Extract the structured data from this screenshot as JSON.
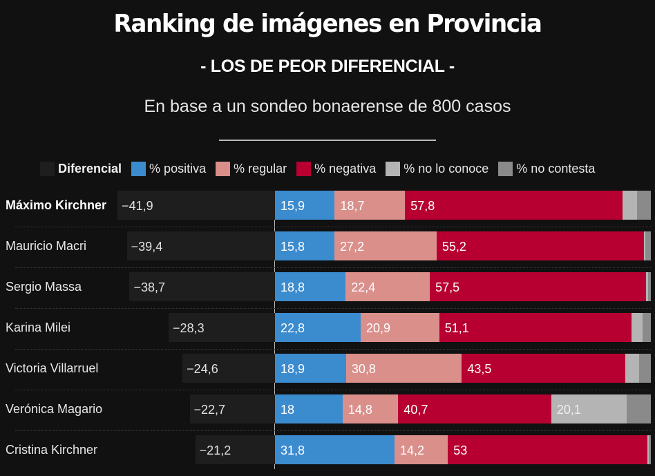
{
  "header": {
    "title": "Ranking de imágenes en Provincia",
    "subtitle": "- LOS DE PEOR DIFERENCIAL -",
    "note": "En base a un sondeo bonaerense de 800 casos"
  },
  "legend": [
    {
      "key": "diferencial",
      "label": "Diferencial",
      "color": "#1e1e1e",
      "bold": true
    },
    {
      "key": "positiva",
      "label": "% positiva",
      "color": "#3b8bcf"
    },
    {
      "key": "regular",
      "label": "% regular",
      "color": "#da8f8b"
    },
    {
      "key": "negativa",
      "label": "% negativa",
      "color": "#b70031"
    },
    {
      "key": "no_conoce",
      "label": "% no lo conoce",
      "color": "#b4b4b4"
    },
    {
      "key": "no_contesta",
      "label": "% no contesta",
      "color": "#8a8a8a"
    }
  ],
  "chart_data": {
    "type": "bar",
    "stacked": true,
    "orientation": "horizontal",
    "title": "Ranking de imágenes en Provincia",
    "subtitle": "- LOS DE PEOR DIFERENCIAL -",
    "note": "En base a un sondeo bonaerense de 800 casos",
    "legend_position": "top",
    "xlim": [
      0,
      100
    ],
    "categories": [
      "Máximo Kirchner",
      "Mauricio Macri",
      "Sergio Massa",
      "Karina Milei",
      "Victoria Villarruel",
      "Verónica Magario",
      "Cristina Kirchner"
    ],
    "highlighted_category": "Máximo Kirchner",
    "diferencial": {
      "name": "Diferencial",
      "values": [
        -41.9,
        -39.4,
        -38.7,
        -28.3,
        -24.6,
        -22.7,
        -21.2
      ],
      "labels": [
        "−41,9",
        "−39,4",
        "−38,7",
        "−28,3",
        "−24,6",
        "−22,7",
        "−21,2"
      ]
    },
    "series": [
      {
        "name": "% positiva",
        "key": "positiva",
        "values": [
          15.9,
          15.8,
          18.8,
          22.8,
          18.9,
          18,
          31.8
        ],
        "labels": [
          "15,9",
          "15,8",
          "18,8",
          "22,8",
          "18,9",
          "18",
          "31,8"
        ]
      },
      {
        "name": "% regular",
        "key": "regular",
        "values": [
          18.7,
          27.2,
          22.4,
          20.9,
          30.8,
          14.8,
          14.2
        ],
        "labels": [
          "18,7",
          "27,2",
          "22,4",
          "20,9",
          "30,8",
          "14,8",
          "14,2"
        ]
      },
      {
        "name": "% negativa",
        "key": "negativa",
        "values": [
          57.8,
          55.2,
          57.5,
          51.1,
          43.5,
          40.7,
          53
        ],
        "labels": [
          "57,8",
          "55,2",
          "57,5",
          "51,1",
          "43,5",
          "40,7",
          "53"
        ]
      },
      {
        "name": "% no lo conoce",
        "key": "no_conoce",
        "values": [
          4.0,
          0.4,
          0.5,
          3.0,
          3.7,
          20.1,
          0.4
        ],
        "labels": [
          "",
          "",
          "",
          "",
          "",
          "20,1",
          ""
        ]
      },
      {
        "name": "% no contesta",
        "key": "no_contesta",
        "values": [
          3.6,
          1.4,
          0.8,
          2.2,
          3.1,
          6.4,
          0.6
        ],
        "labels": [
          "",
          "",
          "",
          "",
          "",
          "",
          ""
        ]
      }
    ]
  }
}
